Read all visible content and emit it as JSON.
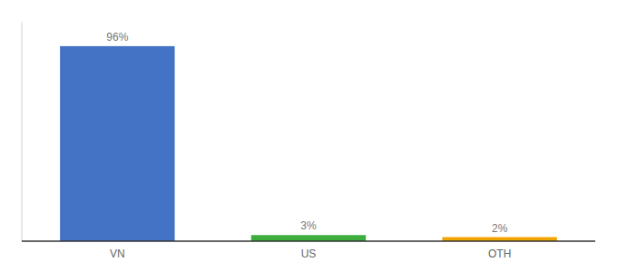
{
  "chart_data": {
    "type": "bar",
    "categories": [
      "VN",
      "US",
      "OTH"
    ],
    "values": [
      96,
      3,
      2
    ],
    "value_labels": [
      "96%",
      "3%",
      "2%"
    ],
    "colors": [
      "#4472c4",
      "#3dae3d",
      "#f0a500"
    ],
    "ylim": [
      0,
      108
    ],
    "data_labels": true,
    "tick_labels": "x",
    "grid": false
  }
}
